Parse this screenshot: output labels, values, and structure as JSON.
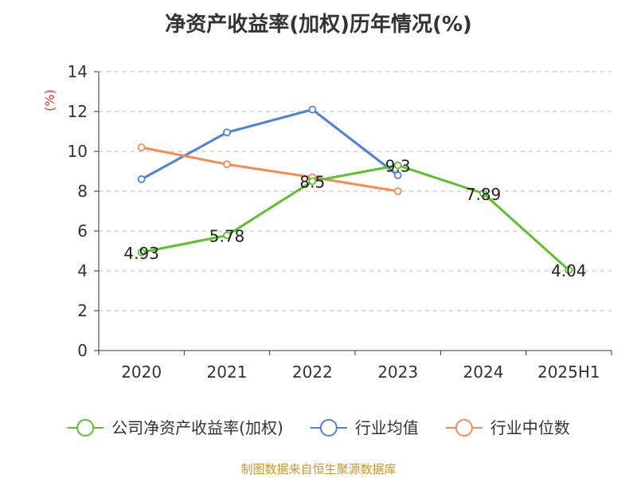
{
  "chart_data": {
    "type": "line",
    "title": "净资产收益率(加权)历年情况(%)",
    "ylabel": "(%)",
    "xlabel": "",
    "categories": [
      "2020",
      "2021",
      "2022",
      "2023",
      "2024",
      "2025H1"
    ],
    "ylim": [
      0,
      14
    ],
    "yticks": [
      0,
      2,
      4,
      6,
      8,
      10,
      12,
      14
    ],
    "grid": "horizontal dashed",
    "legend_position": "bottom",
    "series": [
      {
        "name": "公司净资产收益率(加权)",
        "color": "#5cc12b",
        "values": [
          4.93,
          5.78,
          8.5,
          9.3,
          7.89,
          4.04
        ],
        "labels": [
          "4.93",
          "5.78",
          "8.5",
          "9.3",
          "7.89",
          "4.04"
        ]
      },
      {
        "name": "行业均值",
        "color": "#4f81d9",
        "values": [
          8.6,
          10.95,
          12.1,
          8.8,
          null,
          null
        ]
      },
      {
        "name": "行业中位数",
        "color": "#f28e55",
        "values": [
          10.2,
          9.35,
          8.7,
          8.0,
          null,
          null
        ]
      }
    ]
  },
  "source": "制图数据来自恒生聚源数据库"
}
